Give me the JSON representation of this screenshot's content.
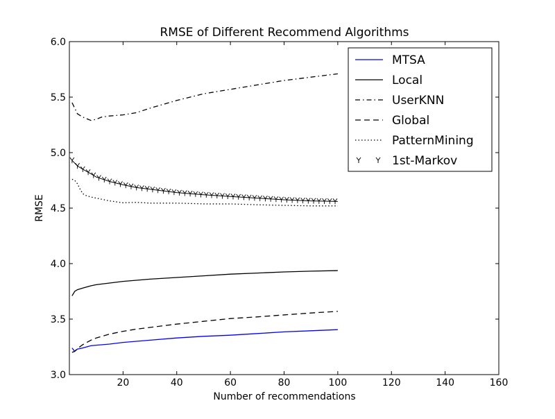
{
  "chart_data": {
    "type": "line",
    "title": "RMSE of Different Recommend Algorithms",
    "xlabel": "Number of recommendations",
    "ylabel": "RMSE",
    "xlim": [
      0,
      160
    ],
    "ylim": [
      3.0,
      6.0
    ],
    "xticks": [
      20,
      40,
      60,
      80,
      100,
      120,
      140,
      160
    ],
    "yticks": [
      3.0,
      3.5,
      4.0,
      4.5,
      5.0,
      5.5,
      6.0
    ],
    "grid": false,
    "legend_position": "top-right",
    "series": [
      {
        "name": "MTSA",
        "style": "solid",
        "color": "#0000ff",
        "x": [
          1,
          2,
          3,
          5,
          8,
          10,
          15,
          20,
          25,
          30,
          40,
          50,
          60,
          70,
          80,
          90,
          100
        ],
        "y": [
          3.24,
          3.21,
          3.23,
          3.24,
          3.26,
          3.265,
          3.275,
          3.29,
          3.3,
          3.31,
          3.33,
          3.345,
          3.355,
          3.37,
          3.385,
          3.395,
          3.405
        ]
      },
      {
        "name": "Local",
        "style": "solid",
        "color": "#000000",
        "x": [
          1,
          2,
          3,
          5,
          8,
          10,
          15,
          20,
          25,
          30,
          40,
          50,
          60,
          70,
          80,
          90,
          100
        ],
        "y": [
          3.71,
          3.75,
          3.765,
          3.78,
          3.8,
          3.81,
          3.825,
          3.84,
          3.85,
          3.86,
          3.875,
          3.89,
          3.905,
          3.915,
          3.925,
          3.932,
          3.937
        ]
      },
      {
        "name": "UserKNN",
        "style": "dashdot",
        "color": "#000000",
        "x": [
          1,
          2,
          3,
          5,
          8,
          10,
          12,
          15,
          20,
          25,
          30,
          40,
          50,
          60,
          70,
          80,
          90,
          100
        ],
        "y": [
          5.45,
          5.4,
          5.35,
          5.32,
          5.29,
          5.3,
          5.32,
          5.33,
          5.34,
          5.36,
          5.4,
          5.47,
          5.53,
          5.57,
          5.61,
          5.65,
          5.68,
          5.71
        ]
      },
      {
        "name": "Global",
        "style": "dashed",
        "color": "#000000",
        "x": [
          1,
          2,
          3,
          5,
          8,
          10,
          15,
          20,
          25,
          30,
          40,
          50,
          60,
          70,
          80,
          90,
          100
        ],
        "y": [
          3.2,
          3.21,
          3.235,
          3.27,
          3.31,
          3.33,
          3.365,
          3.39,
          3.41,
          3.425,
          3.455,
          3.48,
          3.505,
          3.52,
          3.538,
          3.555,
          3.57
        ]
      },
      {
        "name": "PatternMining",
        "style": "dotted",
        "color": "#000000",
        "x": [
          1,
          2,
          3,
          4,
          5,
          6,
          8,
          10,
          15,
          20,
          25,
          30,
          40,
          50,
          60,
          70,
          80,
          90,
          100
        ],
        "y": [
          4.76,
          4.75,
          4.72,
          4.67,
          4.63,
          4.615,
          4.6,
          4.59,
          4.565,
          4.548,
          4.552,
          4.545,
          4.545,
          4.538,
          4.538,
          4.53,
          4.525,
          4.52,
          4.52
        ]
      },
      {
        "name": "1st-Markov",
        "style": "markers",
        "color": "#000000",
        "x": [
          1,
          3,
          5,
          8,
          10,
          15,
          20,
          25,
          30,
          40,
          50,
          60,
          70,
          80,
          90,
          100
        ],
        "y": [
          4.93,
          4.88,
          4.85,
          4.81,
          4.78,
          4.74,
          4.71,
          4.685,
          4.67,
          4.64,
          4.62,
          4.605,
          4.59,
          4.575,
          4.565,
          4.56
        ]
      }
    ]
  }
}
